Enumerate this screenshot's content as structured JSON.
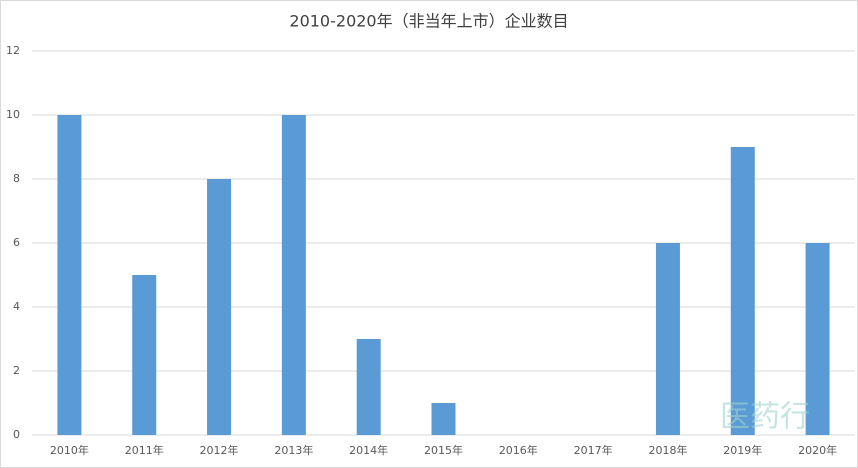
{
  "chart_data": {
    "type": "bar",
    "title": "2010-2020年（非当年上市）企业数目",
    "categories": [
      "2010年",
      "2011年",
      "2012年",
      "2013年",
      "2014年",
      "2015年",
      "2016年",
      "2017年",
      "2018年",
      "2019年",
      "2020年"
    ],
    "values": [
      10,
      5,
      8,
      10,
      3,
      1,
      0,
      0,
      6,
      9,
      6
    ],
    "color": "#5b9bd5",
    "ylim": [
      0,
      12
    ],
    "yticks": [
      0,
      2,
      4,
      6,
      8,
      10,
      12
    ],
    "grid": true,
    "watermark": "医药行"
  }
}
